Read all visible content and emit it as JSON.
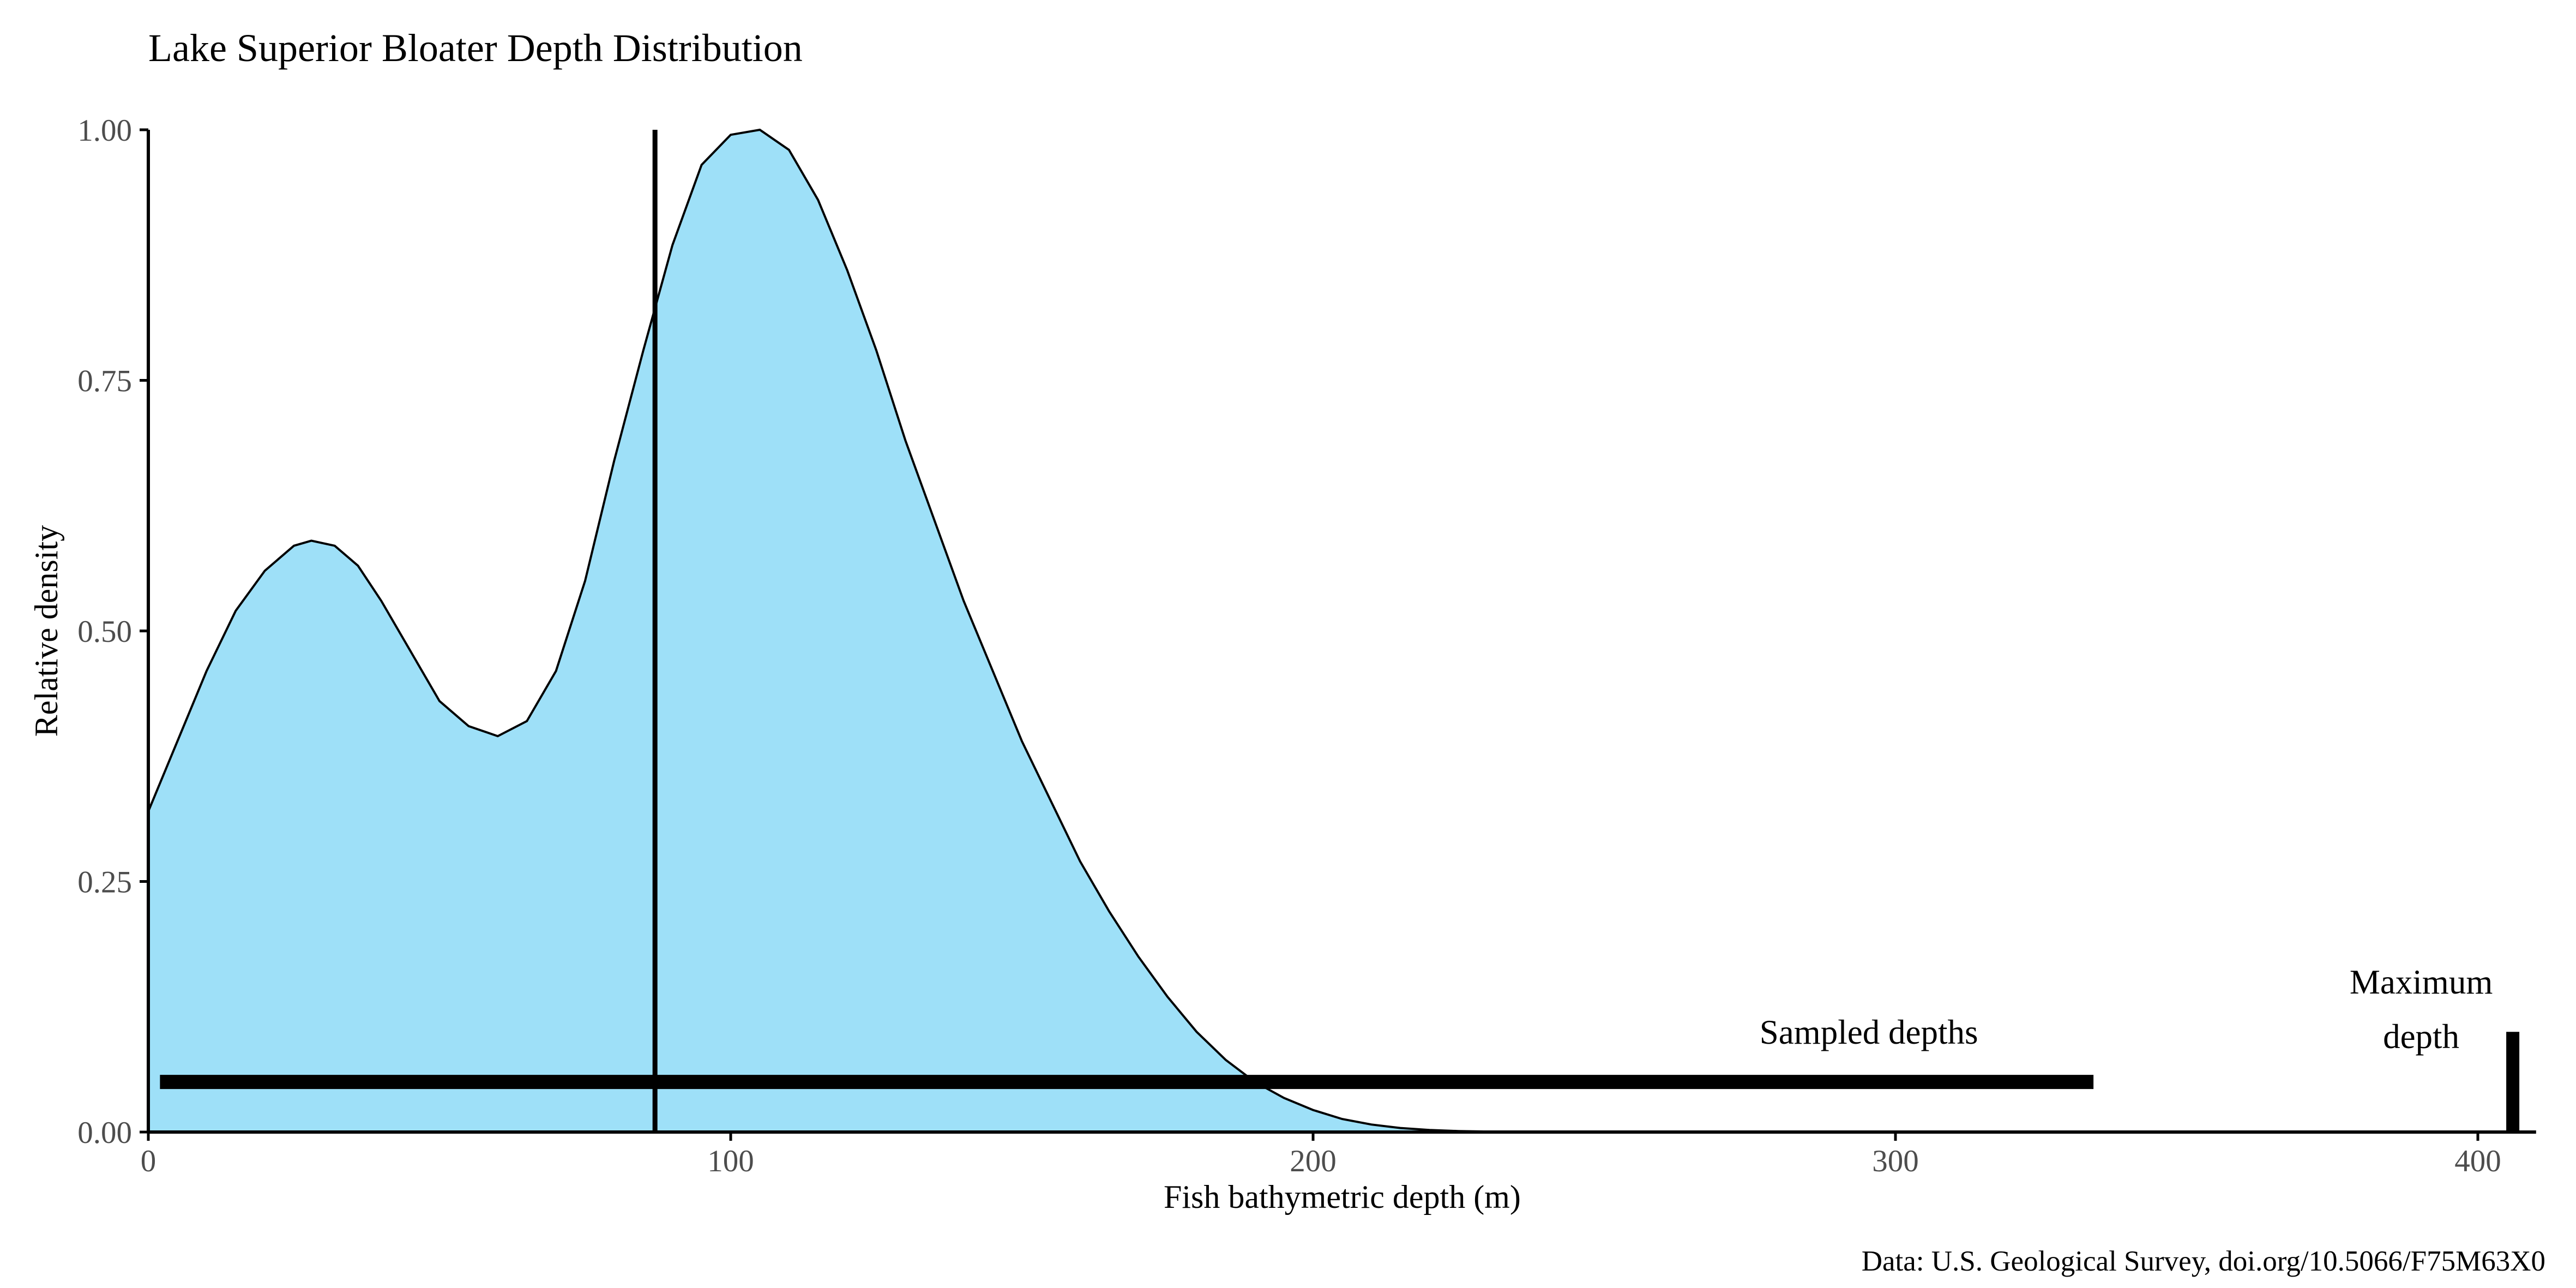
{
  "chart_data": {
    "type": "area",
    "title": "Lake Superior Bloater Depth Distribution",
    "xlabel": "Fish bathymetric depth (m)",
    "ylabel": "Relative density",
    "caption": "Data: U.S. Geological Survey, doi.org/10.5066/F75M63X0",
    "xlim": [
      0,
      410
    ],
    "ylim": [
      0,
      1
    ],
    "x_ticks": [
      0,
      100,
      200,
      300,
      400
    ],
    "x_tick_labels": [
      "0",
      "100",
      "200",
      "300",
      "400"
    ],
    "y_ticks": [
      0,
      0.25,
      0.5,
      0.75,
      1.0
    ],
    "y_tick_labels": [
      "0.00",
      "0.25",
      "0.50",
      "0.75",
      "1.00"
    ],
    "grid": false,
    "fill_color": "#9ee0f8",
    "line_color": "#000000",
    "series": [
      {
        "x": [
          0,
          5,
          10,
          15,
          20,
          25,
          28,
          32,
          36,
          40,
          45,
          50,
          55,
          60,
          65,
          70,
          75,
          80,
          85,
          90,
          95,
          100,
          105,
          110,
          115,
          120,
          125,
          130,
          135,
          140,
          145,
          150,
          155,
          160,
          165,
          170,
          175,
          180,
          185,
          190,
          195,
          200,
          205,
          210,
          215,
          220,
          225,
          230,
          235,
          240,
          245,
          250
        ],
        "y": [
          0.32,
          0.39,
          0.46,
          0.52,
          0.56,
          0.585,
          0.59,
          0.585,
          0.565,
          0.53,
          0.48,
          0.43,
          0.405,
          0.395,
          0.41,
          0.46,
          0.55,
          0.67,
          0.78,
          0.885,
          0.965,
          0.995,
          1.0,
          0.98,
          0.93,
          0.86,
          0.78,
          0.69,
          0.61,
          0.53,
          0.46,
          0.39,
          0.33,
          0.27,
          0.22,
          0.175,
          0.135,
          0.1,
          0.072,
          0.05,
          0.034,
          0.022,
          0.013,
          0.0075,
          0.004,
          0.002,
          0.001,
          0.0005,
          0.0002,
          0.0001,
          5e-05,
          0
        ]
      }
    ],
    "vertical_line": {
      "x": 87
    },
    "sampled_depths": {
      "label": "Sampled depths",
      "from": 2,
      "to": 334,
      "y": 0.05
    },
    "maximum_depth": {
      "label_line1": "Maximum",
      "label_line2": "depth",
      "x": 406,
      "y_top": 0.1
    }
  }
}
